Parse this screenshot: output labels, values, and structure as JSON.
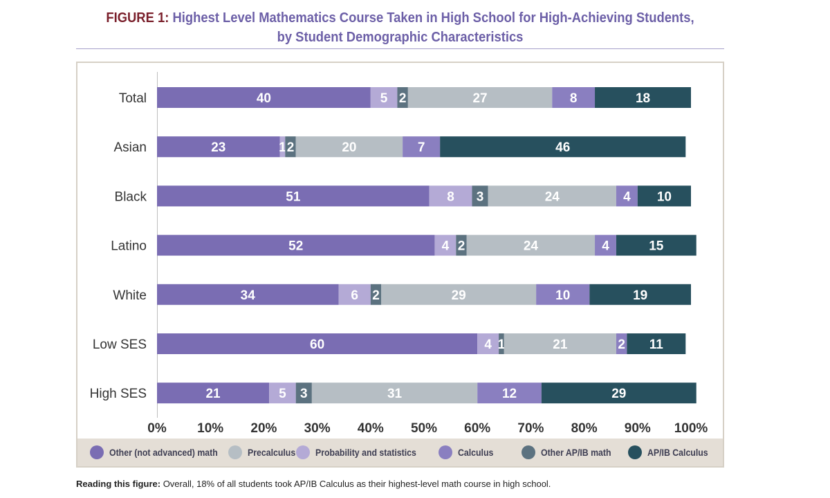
{
  "figure": {
    "title_lead": "FIGURE 1:",
    "title_line1": "Highest Level Mathematics Course Taken in High School for High-Achieving Students,",
    "title_line2": "by Student Demographic Characteristics"
  },
  "note": {
    "label": "Reading this figure:",
    "text": "Overall, 18% of all students took AP/IB Calculus as their highest-level math course in high school."
  },
  "chart_data": {
    "type": "bar",
    "orientation": "horizontal",
    "stacked": true,
    "categories": [
      "Total",
      "Asian",
      "Black",
      "Latino",
      "White",
      "Low SES",
      "High SES"
    ],
    "series": [
      {
        "name": "Other (not advanced) math",
        "values": [
          40,
          23,
          51,
          52,
          34,
          60,
          21
        ],
        "color": "#7a6db3"
      },
      {
        "name": "Probability and statistics",
        "values": [
          5,
          1,
          8,
          4,
          6,
          4,
          5
        ],
        "color": "#b4aad6"
      },
      {
        "name": "Other AP/IB math",
        "values": [
          2,
          2,
          3,
          2,
          2,
          1,
          3
        ],
        "color": "#5c7280"
      },
      {
        "name": "Precalculus",
        "values": [
          27,
          20,
          24,
          24,
          29,
          21,
          31
        ],
        "color": "#b6bec4"
      },
      {
        "name": "Calculus",
        "values": [
          8,
          7,
          4,
          4,
          10,
          2,
          12
        ],
        "color": "#8a7fc0"
      },
      {
        "name": "AP/IB Calculus",
        "values": [
          18,
          46,
          10,
          15,
          19,
          11,
          29
        ],
        "color": "#27505e"
      }
    ],
    "xlim": [
      0,
      100
    ],
    "x_ticks": [
      "0%",
      "10%",
      "20%",
      "30%",
      "40%",
      "50%",
      "60%",
      "70%",
      "80%",
      "90%",
      "100%"
    ],
    "legend": {
      "position": "bottom",
      "order": [
        "Other (not advanced) math",
        "Precalculus",
        "Probability and statistics",
        "Calculus",
        "Other AP/IB math",
        "AP/IB Calculus"
      ]
    },
    "grid": false
  }
}
